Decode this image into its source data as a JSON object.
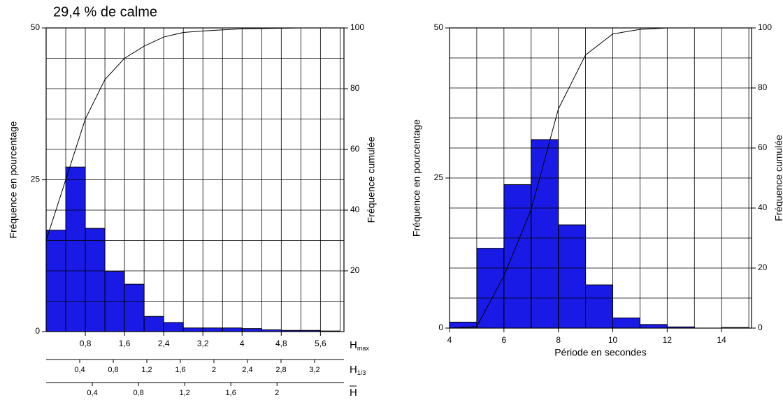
{
  "chart_data": [
    {
      "type": "histogram",
      "title": "29,4 % de calme",
      "y_label": "Fréquence en pourcentage",
      "y2_label": "Fréquence cumulée",
      "x_label": {
        "symbol": "H",
        "subscript": "max"
      },
      "bins": [
        0,
        0.4,
        0.8,
        1.2,
        1.6,
        2.0,
        2.4,
        2.8,
        3.2,
        3.6,
        4.0,
        4.4,
        4.8,
        5.2,
        5.6,
        6.0
      ],
      "counts": [
        16.7,
        27.1,
        17.0,
        9.9,
        7.8,
        2.5,
        1.5,
        0.6,
        0.6,
        0.6,
        0.5,
        0.3,
        0.2,
        0.2,
        0.1
      ],
      "color": "#1a1ae6",
      "xlim": [
        0,
        6.08
      ],
      "xticks": [
        {
          "value": 0.8,
          "label": "0,8"
        },
        {
          "value": 1.6,
          "label": "1,6"
        },
        {
          "value": 2.4,
          "label": "2,4"
        },
        {
          "value": 3.2,
          "label": "3,2"
        },
        4,
        {
          "value": 4.8,
          "label": "4,8"
        },
        {
          "value": 5.6,
          "label": "5,6"
        }
      ],
      "ylim": [
        0,
        50
      ],
      "yticks": [
        0,
        25,
        50
      ],
      "y2lim": [
        0,
        100
      ],
      "y2ticks": [
        20,
        40,
        60,
        80,
        100
      ],
      "grid": true,
      "ygrid": [
        0,
        5,
        10,
        15,
        20,
        25,
        30,
        35,
        40,
        45,
        50
      ],
      "line": {
        "x": [
          0,
          0.8,
          1.2,
          1.6,
          2.0,
          2.4,
          2.8,
          3.2,
          4.0,
          5.2,
          6.0
        ],
        "values": [
          30,
          70,
          83,
          90,
          94,
          97,
          98.5,
          99,
          99.7,
          100,
          100
        ],
        "axis": "y2",
        "color": "#000000"
      },
      "secondary_x_axes": [
        {
          "label": {
            "symbol": "H",
            "subscript": "1/3"
          },
          "xlim": [
            0,
            3.55
          ],
          "xticks": [
            {
              "value": 0.4,
              "label": "0,4"
            },
            {
              "value": 0.8,
              "label": "0,8"
            },
            {
              "value": 1.2,
              "label": "1,2"
            },
            {
              "value": 1.6,
              "label": "1,6"
            },
            2,
            {
              "value": 2.4,
              "label": "2,4"
            },
            {
              "value": 2.8,
              "label": "2,8"
            },
            {
              "value": 3.2,
              "label": "3,2"
            }
          ]
        },
        {
          "label": {
            "symbol": "H",
            "overline": true
          },
          "xlim": [
            0,
            2.58
          ],
          "xticks": [
            {
              "value": 0.4,
              "label": "0,4"
            },
            {
              "value": 0.8,
              "label": "0,8"
            },
            {
              "value": 1.2,
              "label": "1,2"
            },
            {
              "value": 1.6,
              "label": "1,6"
            },
            2
          ]
        }
      ]
    },
    {
      "type": "histogram",
      "y_label": "Fréquence en pourcentage",
      "y2_label": "Fréquence cumulée",
      "x_label": "Période en secondes",
      "bins": [
        4,
        5,
        6,
        7,
        8,
        9,
        10,
        11,
        12,
        13,
        14,
        15
      ],
      "counts": [
        1.0,
        13.3,
        23.9,
        31.4,
        17.2,
        7.2,
        1.7,
        0.6,
        0.2,
        0,
        0.1
      ],
      "color": "#1a1ae6",
      "xlim": [
        4,
        15.1
      ],
      "xticks": [
        4,
        6,
        8,
        10,
        12,
        14
      ],
      "ylim": [
        0,
        50
      ],
      "yticks": [
        0,
        25,
        50
      ],
      "y2lim": [
        0,
        100
      ],
      "y2ticks": [
        0,
        20,
        40,
        60,
        80,
        100
      ],
      "grid": true,
      "ygrid": [
        0,
        5,
        10,
        15,
        20,
        25,
        30,
        35,
        40,
        45,
        50
      ],
      "line": {
        "x": [
          4,
          5,
          6,
          7,
          8,
          9,
          10,
          11,
          12,
          15
        ],
        "values": [
          0,
          0.5,
          17.4,
          39.5,
          73,
          91,
          98,
          99.5,
          100,
          100
        ],
        "axis": "y2",
        "color": "#000000"
      }
    }
  ]
}
